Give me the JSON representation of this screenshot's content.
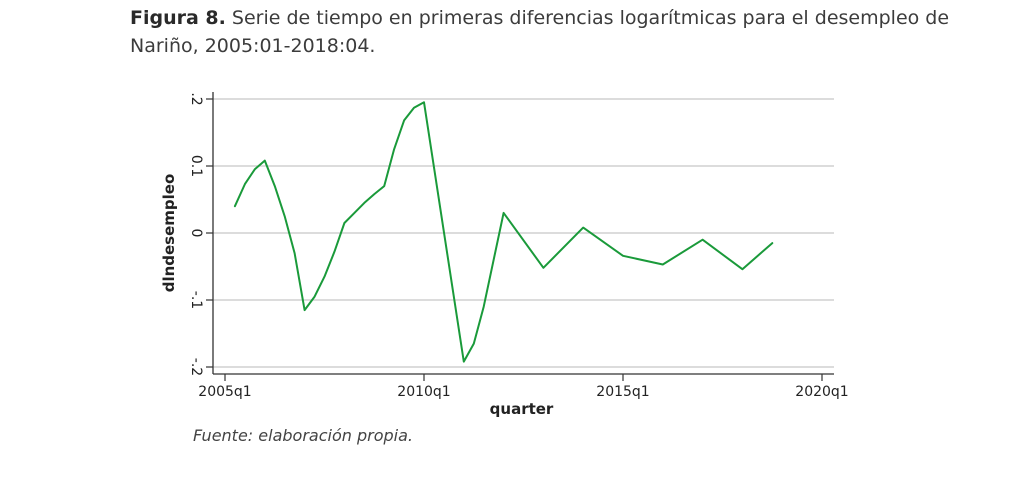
{
  "caption": {
    "label": "Figura 8.",
    "text": " Serie de tiempo en primeras diferencias logarítmicas para el desempleo de Nariño, 2005:01-2018:04."
  },
  "source_note": "Fuente: elaboración propia.",
  "chart_data": {
    "type": "line",
    "xlabel": "quarter",
    "ylabel": "dlndesempleo",
    "xlim": [
      2005.0,
      2020.0
    ],
    "ylim": [
      -0.2,
      0.2
    ],
    "x_ticks": [
      {
        "value": 2005.0,
        "label": "2005q1"
      },
      {
        "value": 2010.0,
        "label": "2010q1"
      },
      {
        "value": 2015.0,
        "label": "2015q1"
      },
      {
        "value": 2020.0,
        "label": "2020q1"
      }
    ],
    "y_ticks": [
      {
        "value": -0.2,
        "label": "-.2"
      },
      {
        "value": -0.1,
        "label": "-.1"
      },
      {
        "value": 0.0,
        "label": "0"
      },
      {
        "value": 0.1,
        "label": "0.1"
      },
      {
        "value": 0.2,
        "label": ".2"
      }
    ],
    "grid": true,
    "line_color": "#1a9a3a",
    "series": [
      {
        "points": [
          [
            2005.25,
            0.04
          ],
          [
            2005.5,
            0.073
          ],
          [
            2005.75,
            0.095
          ],
          [
            2006.0,
            0.108
          ],
          [
            2006.25,
            0.07
          ],
          [
            2006.5,
            0.025
          ],
          [
            2006.75,
            -0.03
          ],
          [
            2007.0,
            -0.115
          ],
          [
            2007.25,
            -0.095
          ],
          [
            2007.5,
            -0.065
          ],
          [
            2007.75,
            -0.028
          ],
          [
            2008.0,
            0.015
          ],
          [
            2008.25,
            0.03
          ],
          [
            2008.5,
            0.045
          ],
          [
            2008.75,
            0.058
          ],
          [
            2009.0,
            0.07
          ],
          [
            2009.25,
            0.125
          ],
          [
            2009.5,
            0.168
          ],
          [
            2009.75,
            0.187
          ],
          [
            2010.0,
            0.195
          ],
          [
            2011.0,
            -0.192
          ],
          [
            2011.25,
            -0.165
          ],
          [
            2011.5,
            -0.11
          ],
          [
            2012.0,
            0.03
          ],
          [
            2013.0,
            -0.052
          ],
          [
            2014.0,
            0.008
          ],
          [
            2015.0,
            -0.034
          ],
          [
            2016.0,
            -0.047
          ],
          [
            2017.0,
            -0.01
          ],
          [
            2018.0,
            -0.054
          ],
          [
            2018.75,
            -0.015
          ]
        ]
      }
    ]
  }
}
